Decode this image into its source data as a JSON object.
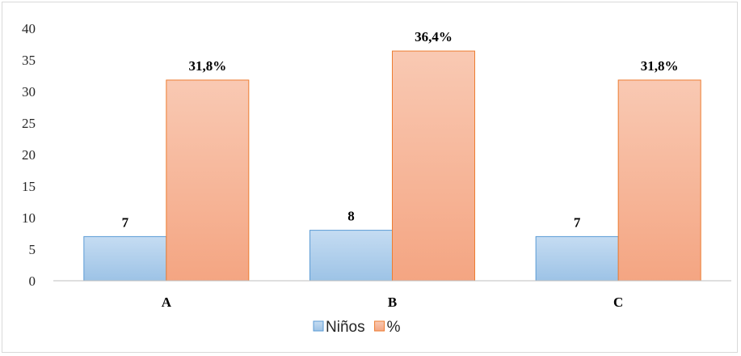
{
  "chart_data": {
    "type": "bar",
    "categories": [
      "A",
      "B",
      "C"
    ],
    "series": [
      {
        "name": "Niños",
        "values": [
          7,
          8,
          7
        ],
        "labels": [
          "7",
          "8",
          "7"
        ],
        "color": "#9dc3e6",
        "color_light": "#c5dcf2",
        "stroke": "#5b9bd5"
      },
      {
        "name": "%",
        "values": [
          31.8,
          36.4,
          31.8
        ],
        "labels": [
          "31,8%",
          "36,4%",
          "31,8%"
        ],
        "color": "#f4a582",
        "color_light": "#f9c9b3",
        "stroke": "#ed7d31"
      }
    ],
    "title": "",
    "xlabel": "",
    "ylabel": "",
    "ylim": [
      0,
      40
    ],
    "yticks": [
      0,
      5,
      10,
      15,
      20,
      25,
      30,
      35,
      40
    ],
    "grid": false,
    "legend": "bottom"
  }
}
